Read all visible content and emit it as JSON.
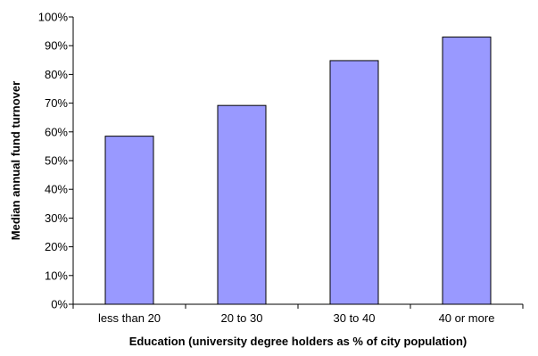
{
  "chart_data": {
    "type": "bar",
    "categories": [
      "less than 20",
      "20 to 30",
      "30 to 40",
      "40 or more"
    ],
    "values": [
      58.5,
      69.2,
      84.8,
      93.0
    ],
    "value_unit": "percent",
    "title": "",
    "xlabel": "Education (university degree holders as % of city population)",
    "ylabel": "Median annual fund turnover",
    "ylim": [
      0,
      100
    ],
    "yticks": [
      0,
      10,
      20,
      30,
      40,
      50,
      60,
      70,
      80,
      90,
      100
    ],
    "ytick_labels": [
      "0%",
      "10%",
      "20%",
      "30%",
      "40%",
      "50%",
      "60%",
      "70%",
      "80%",
      "90%",
      "100%"
    ],
    "grid": false,
    "legend": "none",
    "colors": {
      "bar_fill": "#9999ff",
      "bar_stroke": "#000000",
      "axis": "#000000",
      "background": "#ffffff"
    }
  }
}
